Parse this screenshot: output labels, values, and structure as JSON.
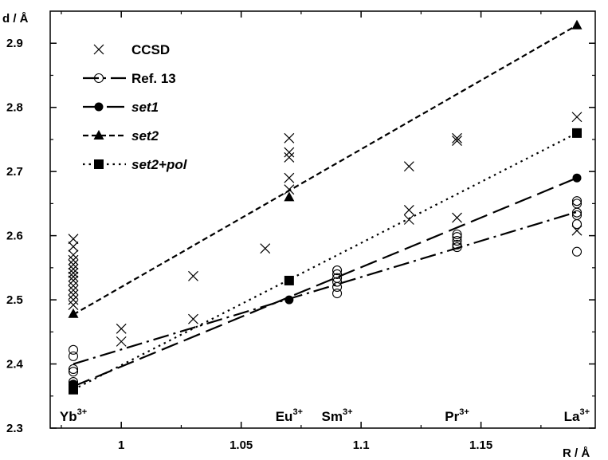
{
  "chart_data": {
    "type": "scatter",
    "title": "",
    "xlabel": "R / Å",
    "ylabel": "d / Å",
    "xlim": [
      0.955,
      1.19
    ],
    "ylim": [
      2.3,
      2.95
    ],
    "xticks": [
      1,
      1.05,
      1.1,
      1.15
    ],
    "xtick_labels": [
      "1",
      "1.05",
      "1.1",
      "1.15"
    ],
    "yticks": [
      2.3,
      2.4,
      2.5,
      2.6,
      2.7,
      2.8,
      2.9
    ],
    "ytick_labels": [
      "2.3",
      "2.4",
      "2.5",
      "2.6",
      "2.7",
      "2.8",
      "2.9"
    ],
    "grid": false,
    "legend_position": "top-left",
    "ion_labels": [
      {
        "base": "Yb",
        "sup": "3+",
        "x": 0.98
      },
      {
        "base": "Eu",
        "sup": "3+",
        "x": 1.07
      },
      {
        "base": "Sm",
        "sup": "3+",
        "x": 1.09
      },
      {
        "base": "Pr",
        "sup": "3+",
        "x": 1.14
      },
      {
        "base": "La",
        "sup": "3+",
        "x": 1.19
      }
    ],
    "series": [
      {
        "name": "CCSD",
        "marker": "x",
        "points": [
          [
            0.98,
            2.595
          ],
          [
            0.98,
            2.583
          ],
          [
            0.98,
            2.57
          ],
          [
            0.98,
            2.562
          ],
          [
            0.98,
            2.555
          ],
          [
            0.98,
            2.548
          ],
          [
            0.98,
            2.542
          ],
          [
            0.98,
            2.536
          ],
          [
            0.98,
            2.53
          ],
          [
            0.98,
            2.522
          ],
          [
            0.98,
            2.515
          ],
          [
            0.98,
            2.508
          ],
          [
            0.98,
            2.5
          ],
          [
            0.98,
            2.492
          ],
          [
            1.0,
            2.455
          ],
          [
            1.0,
            2.435
          ],
          [
            1.03,
            2.537
          ],
          [
            1.03,
            2.47
          ],
          [
            1.06,
            2.58
          ],
          [
            1.07,
            2.752
          ],
          [
            1.07,
            2.73
          ],
          [
            1.07,
            2.722
          ],
          [
            1.07,
            2.69
          ],
          [
            1.07,
            2.672
          ],
          [
            1.12,
            2.708
          ],
          [
            1.12,
            2.64
          ],
          [
            1.12,
            2.625
          ],
          [
            1.14,
            2.752
          ],
          [
            1.14,
            2.748
          ],
          [
            1.14,
            2.628
          ],
          [
            1.19,
            2.785
          ],
          [
            1.19,
            2.608
          ]
        ]
      },
      {
        "name": "Ref. 13",
        "marker": "open-circle",
        "line": "long-dash-dot",
        "line_points": [
          [
            0.98,
            2.4
          ],
          [
            1.19,
            2.637
          ]
        ],
        "points": [
          [
            0.98,
            2.422
          ],
          [
            0.98,
            2.412
          ],
          [
            0.98,
            2.392
          ],
          [
            0.98,
            2.388
          ],
          [
            0.98,
            2.372
          ],
          [
            0.98,
            2.368
          ],
          [
            1.09,
            2.546
          ],
          [
            1.09,
            2.54
          ],
          [
            1.09,
            2.534
          ],
          [
            1.09,
            2.528
          ],
          [
            1.09,
            2.52
          ],
          [
            1.09,
            2.51
          ],
          [
            1.14,
            2.602
          ],
          [
            1.14,
            2.598
          ],
          [
            1.14,
            2.592
          ],
          [
            1.14,
            2.586
          ],
          [
            1.14,
            2.582
          ],
          [
            1.19,
            2.654
          ],
          [
            1.19,
            2.65
          ],
          [
            1.19,
            2.636
          ],
          [
            1.19,
            2.632
          ],
          [
            1.19,
            2.618
          ],
          [
            1.19,
            2.575
          ]
        ]
      },
      {
        "name": "set1",
        "marker": "filled-circle",
        "line": "long-dash",
        "line_points": [
          [
            0.98,
            2.365
          ],
          [
            1.19,
            2.69
          ]
        ],
        "points": [
          [
            0.98,
            2.368
          ],
          [
            1.07,
            2.5
          ],
          [
            1.19,
            2.69
          ]
        ]
      },
      {
        "name": "set2",
        "marker": "filled-triangle",
        "line": "short-dash",
        "line_points": [
          [
            0.98,
            2.477
          ],
          [
            1.19,
            2.928
          ]
        ],
        "points": [
          [
            0.98,
            2.478
          ],
          [
            1.07,
            2.66
          ],
          [
            1.19,
            2.928
          ]
        ]
      },
      {
        "name": "set2+pol",
        "marker": "filled-square",
        "line": "dotted",
        "line_points": [
          [
            0.98,
            2.36
          ],
          [
            1.19,
            2.76
          ]
        ],
        "points": [
          [
            0.98,
            2.36
          ],
          [
            1.07,
            2.53
          ],
          [
            1.19,
            2.76
          ]
        ]
      }
    ]
  }
}
